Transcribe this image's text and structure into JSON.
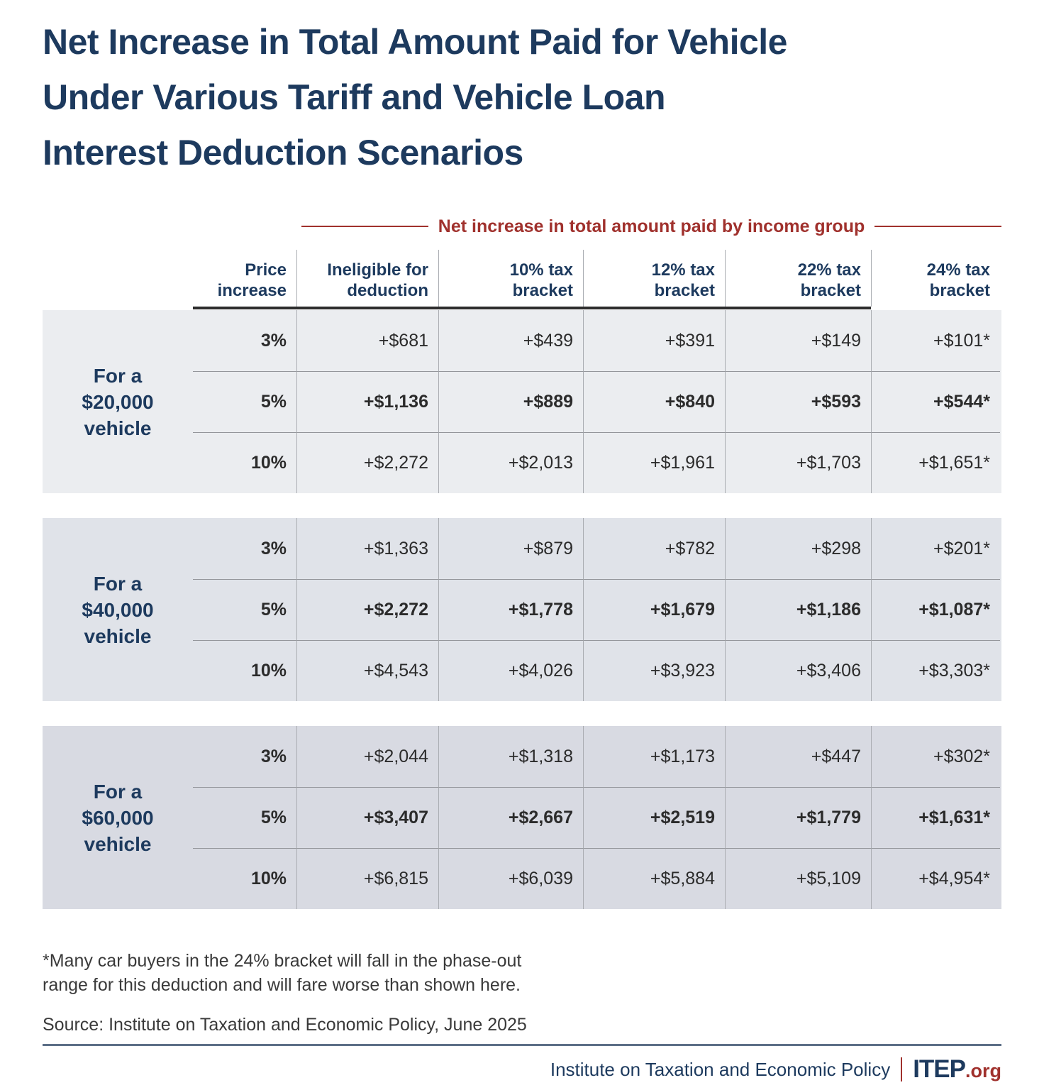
{
  "chart_data": {
    "type": "table",
    "title": "Net Increase in Total Amount Paid for Vehicle\nUnder Various Tariff and Vehicle Loan\nInterest Deduction Scenarios",
    "subtitle": "Net increase in total amount paid by income group",
    "columns": [
      "Price\nincrease",
      "Ineligible for\ndeduction",
      "10% tax\nbracket",
      "12% tax\nbracket",
      "22% tax\nbracket",
      "24% tax\nbracket"
    ],
    "row_groups": [
      {
        "label": "For a\n$20,000\nvehicle",
        "rows": [
          {
            "price_increase": "3%",
            "values": [
              "+$681",
              "+$439",
              "+$391",
              "+$149",
              "+$101*"
            ],
            "emphasis": false
          },
          {
            "price_increase": "5%",
            "values": [
              "+$1,136",
              "+$889",
              "+$840",
              "+$593",
              "+$544*"
            ],
            "emphasis": true
          },
          {
            "price_increase": "10%",
            "values": [
              "+$2,272",
              "+$2,013",
              "+$1,961",
              "+$1,703",
              "+$1,651*"
            ],
            "emphasis": false
          }
        ]
      },
      {
        "label": "For a\n$40,000\nvehicle",
        "rows": [
          {
            "price_increase": "3%",
            "values": [
              "+$1,363",
              "+$879",
              "+$782",
              "+$298",
              "+$201*"
            ],
            "emphasis": false
          },
          {
            "price_increase": "5%",
            "values": [
              "+$2,272",
              "+$1,778",
              "+$1,679",
              "+$1,186",
              "+$1,087*"
            ],
            "emphasis": true
          },
          {
            "price_increase": "10%",
            "values": [
              "+$4,543",
              "+$4,026",
              "+$3,923",
              "+$3,406",
              "+$3,303*"
            ],
            "emphasis": false
          }
        ]
      },
      {
        "label": "For a\n$60,000\nvehicle",
        "rows": [
          {
            "price_increase": "3%",
            "values": [
              "+$2,044",
              "+$1,318",
              "+$1,173",
              "+$447",
              "+$302*"
            ],
            "emphasis": false
          },
          {
            "price_increase": "5%",
            "values": [
              "+$3,407",
              "+$2,667",
              "+$2,519",
              "+$1,779",
              "+$1,631*"
            ],
            "emphasis": true
          },
          {
            "price_increase": "10%",
            "values": [
              "+$6,815",
              "+$6,039",
              "+$5,884",
              "+$5,109",
              "+$4,954*"
            ],
            "emphasis": false
          }
        ]
      }
    ],
    "footnote": "*Many car buyers in the 24% bracket will fall in the phase-out\nrange for this deduction and will fare worse than shown here.",
    "source": "Source: Institute on Taxation and Economic Policy, June 2025"
  },
  "footer": {
    "org": "Institute on Taxation and Economic Policy",
    "brand": "ITEP",
    "brand_suffix": ".org"
  },
  "colors": {
    "navy": "#1d3a5e",
    "red": "#a0312d",
    "value_text": "#2b2b2b",
    "group_backgrounds": [
      "#ebedf0",
      "#e0e3e9",
      "#d8dae2"
    ],
    "header_rule": "#2d2d2d",
    "row_separator": "#94969b",
    "column_line": "#aaadb2",
    "footer_rule": "#5d6f87"
  }
}
